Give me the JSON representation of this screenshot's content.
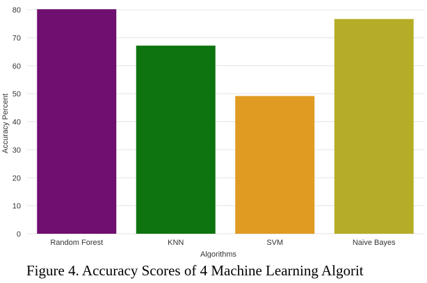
{
  "figure": {
    "caption": "Figure 4. Accuracy Scores of 4 Machine Learning Algorit"
  },
  "chart_data": {
    "type": "bar",
    "categories": [
      "Random Forest",
      "KNN",
      "SVM",
      "Naive Bayes"
    ],
    "values": [
      80.2,
      67.2,
      49.2,
      76.7
    ],
    "colors": [
      "#6f0f6f",
      "#0e7410",
      "#e09b22",
      "#b5ad27"
    ],
    "xlabel": "Algorithms",
    "ylabel": "Accuracy Percent",
    "ylim": [
      0,
      82
    ],
    "yticks": [
      0,
      10,
      20,
      30,
      40,
      50,
      60,
      70,
      80
    ],
    "grid": true
  }
}
